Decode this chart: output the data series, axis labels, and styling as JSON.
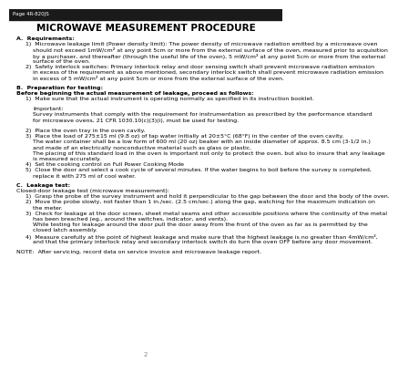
{
  "page_label": "Page 4R-820JS",
  "page_num": "2",
  "title": "MICROWAVE MEASUREMENT PROCEDURE",
  "background_color": "#ffffff",
  "text_color": "#000000",
  "header_bg": "#1a1a1a",
  "body_lines": [
    {
      "text": "A.  Requirements:",
      "bold": true,
      "indent": 0,
      "space_before": 0
    },
    {
      "text": "1)  Microwave leakage limit (Power density limit): The power density of microwave radiation emitted by a microwave oven",
      "bold": false,
      "indent": 1,
      "space_before": 0
    },
    {
      "text": "should not exceed 1mW/cm² at any point 5cm or more from the external surface of the oven, measured prior to acquisition",
      "bold": false,
      "indent": 2,
      "space_before": 0
    },
    {
      "text": "by a purchaser, and thereafter (through the useful life of the oven), 5 mW/cm² at any point 5cm or more from the external",
      "bold": false,
      "indent": 2,
      "space_before": 0
    },
    {
      "text": "surface of the oven.",
      "bold": false,
      "indent": 2,
      "space_before": 0
    },
    {
      "text": "2)  Safety interlock switches: Primary interlock relay and door sensing switch shall prevent microwave radiation emission",
      "bold": false,
      "indent": 1,
      "space_before": 0
    },
    {
      "text": "in excess of the requirement as above mentioned, secondary interlock switch shall prevent microwave radiation emission",
      "bold": false,
      "indent": 2,
      "space_before": 0
    },
    {
      "text": "in excess of 5 mW/cm² at any point 5cm or more from the external surface of the oven.",
      "bold": false,
      "indent": 2,
      "space_before": 0
    },
    {
      "text": "B.  Preparation for testing:",
      "bold": true,
      "indent": 0,
      "space_before": 4
    },
    {
      "text": "Before beginning the actual measurement of leakage, proceed as follows:",
      "bold": true,
      "indent": 0,
      "space_before": 0
    },
    {
      "text": "1)  Make sure that the actual instrument is operating normally as specified in its instruction booklet.",
      "bold": false,
      "indent": 1,
      "space_before": 0
    },
    {
      "text": "",
      "bold": false,
      "indent": 0,
      "space_before": 2
    },
    {
      "text": "Important:",
      "bold": false,
      "indent": 2,
      "space_before": 0
    },
    {
      "text": "Survey instruments that comply with the requirement for instrumentation as prescribed by the performance standard",
      "bold": false,
      "indent": 2,
      "space_before": 0
    },
    {
      "text": "for microwave ovens, 21 CFR 1030.10(c)(3)(i), must be used for testing.",
      "bold": false,
      "indent": 2,
      "space_before": 0
    },
    {
      "text": "",
      "bold": false,
      "indent": 0,
      "space_before": 2
    },
    {
      "text": "2)  Place the oven tray in the oven cavity.",
      "bold": false,
      "indent": 1,
      "space_before": 0
    },
    {
      "text": "3)  Place the load of 275±15 ml (9.8 oz) of tap water initially at 20±5°C (68°F) in the center of the oven cavity.",
      "bold": false,
      "indent": 1,
      "space_before": 0
    },
    {
      "text": "The water container shall be a low form of 600 ml (20 oz) beaker with an inside diameter of approx. 8.5 cm (3-1/2 in.)",
      "bold": false,
      "indent": 2,
      "space_before": 0
    },
    {
      "text": "and made of an electrically nonconductive material such as glass or plastic.",
      "bold": false,
      "indent": 2,
      "space_before": 0
    },
    {
      "text": "The placing of this standard load in the oven is important not only to protect the oven, but also to insure that any leakage",
      "bold": false,
      "indent": 2,
      "space_before": 0
    },
    {
      "text": "is measured accurately.",
      "bold": false,
      "indent": 2,
      "space_before": 0
    },
    {
      "text": "4)  Set the cooking control on Full Power Cooking Mode",
      "bold": false,
      "indent": 1,
      "space_before": 0
    },
    {
      "text": "5)  Close the door and select a cook cycle of several minutes. If the water begins to boil before the survey is completed,",
      "bold": false,
      "indent": 1,
      "space_before": 0
    },
    {
      "text": "replace it with 275 ml of cool water.",
      "bold": false,
      "indent": 2,
      "space_before": 0
    },
    {
      "text": "C.  Leakage test:",
      "bold": true,
      "indent": 0,
      "space_before": 4
    },
    {
      "text": "Closed-door leakage test (microwave measurement):",
      "bold": false,
      "indent": 0,
      "space_before": 0
    },
    {
      "text": "1)  Grasp the probe of the survey instrument and hold it perpendicular to the gap between the door and the body of the oven.",
      "bold": false,
      "indent": 1,
      "space_before": 0
    },
    {
      "text": "2)  Move the probe slowly, not faster than 1 in./sec. (2.5 cm/sec.) along the gap, watching for the maximum indication on",
      "bold": false,
      "indent": 1,
      "space_before": 0
    },
    {
      "text": "the meter.",
      "bold": false,
      "indent": 2,
      "space_before": 0
    },
    {
      "text": "3)  Check for leakage at the door screen, sheet metal seams and other accessible positions where the continuity of the metal",
      "bold": false,
      "indent": 1,
      "space_before": 0
    },
    {
      "text": "has been breached (eg., around the switches, indicator, and vents).",
      "bold": false,
      "indent": 2,
      "space_before": 0
    },
    {
      "text": "While testing for leakage around the door pull the door away from the front of the oven as far as is permitted by the",
      "bold": false,
      "indent": 2,
      "space_before": 0
    },
    {
      "text": "closed latch assembly.",
      "bold": false,
      "indent": 2,
      "space_before": 0
    },
    {
      "text": "4)  Measure carefully at the point of highest leakage and make sure that the highest leakage is no greater than 4mW/cm²,",
      "bold": false,
      "indent": 1,
      "space_before": 0
    },
    {
      "text": "and that the primary interlock relay and secondary interlock switch do turn the oven OFF before any door movement.",
      "bold": false,
      "indent": 2,
      "space_before": 0
    },
    {
      "text": "",
      "bold": false,
      "indent": 0,
      "space_before": 2
    },
    {
      "text": "NOTE:  After servicing, record data on service invoice and microwave leakage report.",
      "bold": false,
      "indent": 0,
      "space_before": 0
    }
  ]
}
